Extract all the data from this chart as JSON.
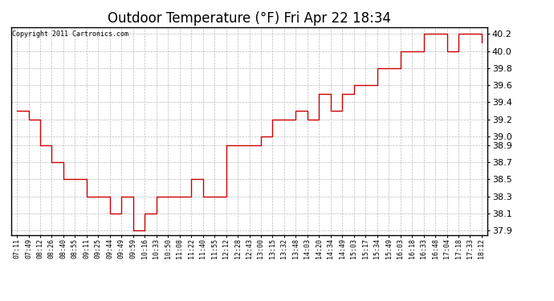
{
  "title": "Outdoor Temperature (°F) Fri Apr 22 18:34",
  "copyright": "Copyright 2011 Cartronics.com",
  "ylim": [
    37.85,
    40.28
  ],
  "yticks": [
    37.9,
    38.1,
    38.3,
    38.5,
    38.7,
    38.9,
    39.0,
    39.2,
    39.4,
    39.6,
    39.8,
    40.0,
    40.2
  ],
  "line_color": "#cc0000",
  "background_color": "#ffffff",
  "grid_color": "#bbbbbb",
  "x_labels": [
    "07:11",
    "07:49",
    "08:12",
    "08:26",
    "08:40",
    "08:55",
    "09:11",
    "09:25",
    "09:44",
    "09:49",
    "09:59",
    "10:16",
    "10:33",
    "10:50",
    "11:08",
    "11:22",
    "11:40",
    "11:55",
    "12:12",
    "12:28",
    "12:43",
    "13:00",
    "13:15",
    "13:32",
    "13:48",
    "14:03",
    "14:20",
    "14:34",
    "14:49",
    "15:03",
    "15:17",
    "15:34",
    "15:49",
    "16:03",
    "16:18",
    "16:33",
    "16:48",
    "17:04",
    "17:18",
    "17:33",
    "18:12"
  ],
  "y_values": [
    39.3,
    39.2,
    38.9,
    38.7,
    38.5,
    38.5,
    38.3,
    38.3,
    38.1,
    38.3,
    37.9,
    38.1,
    38.3,
    38.3,
    38.3,
    38.5,
    38.3,
    38.3,
    38.9,
    38.9,
    38.9,
    39.0,
    39.2,
    39.2,
    39.3,
    39.2,
    39.5,
    39.3,
    39.5,
    39.6,
    39.6,
    39.8,
    39.8,
    40.0,
    40.0,
    40.2,
    40.2,
    40.0,
    40.2,
    40.2,
    40.1
  ],
  "title_fontsize": 12,
  "xlabel_fontsize": 6,
  "ylabel_fontsize": 8,
  "copyright_fontsize": 6
}
